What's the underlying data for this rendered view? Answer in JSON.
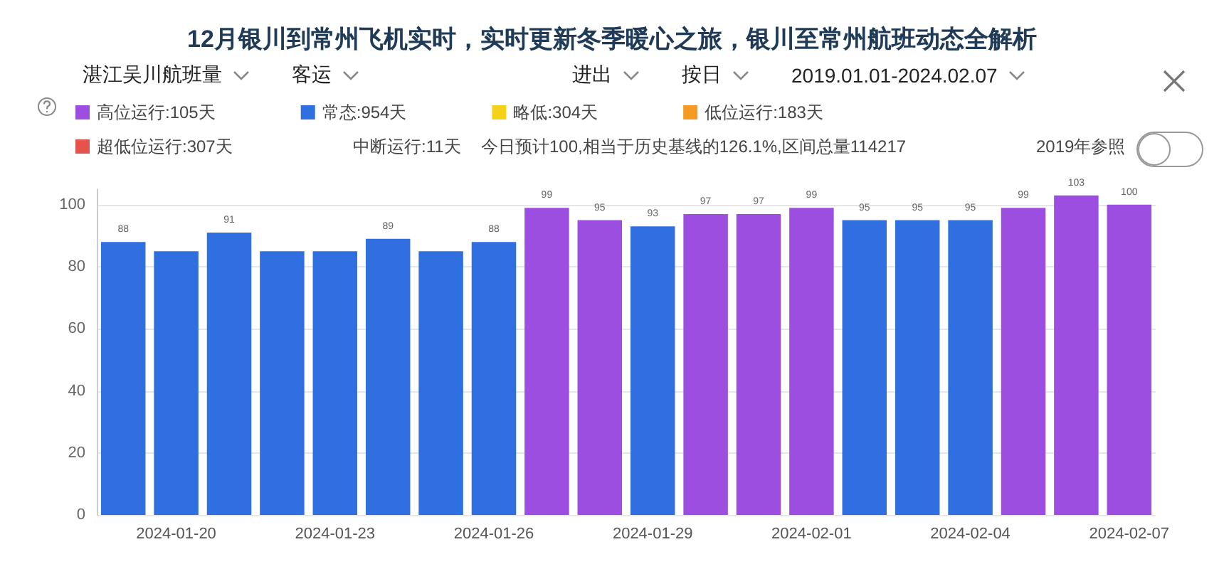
{
  "chart_data": {
    "type": "bar",
    "title": "12月银川到常州飞机实时，实时更新冬季暖心之旅，银川至常州航班动态全解析",
    "categories": [
      null,
      "2024-01-20",
      null,
      null,
      "2024-01-23",
      null,
      null,
      "2024-01-26",
      null,
      null,
      "2024-01-29",
      null,
      null,
      "2024-02-01",
      null,
      null,
      "2024-02-04",
      null,
      null,
      "2024-02-07"
    ],
    "stacked": true,
    "series": [
      {
        "name": "高位运行:105天",
        "color": "#9b4ee0",
        "values": [
          null,
          null,
          null,
          null,
          null,
          null,
          null,
          null,
          99,
          95,
          null,
          97,
          97,
          99,
          null,
          null,
          null,
          99,
          103,
          100
        ],
        "value_labels": [
          null,
          null,
          null,
          null,
          null,
          null,
          null,
          null,
          "99",
          "95",
          null,
          "97",
          "97",
          "99",
          null,
          null,
          null,
          "99",
          "103",
          "100"
        ]
      },
      {
        "name": "常态:954天",
        "color": "#2f6fe0",
        "values": [
          88,
          85,
          91,
          85,
          85,
          89,
          85,
          88,
          null,
          null,
          93,
          null,
          null,
          null,
          95,
          95,
          95,
          null,
          null,
          null
        ],
        "value_labels": [
          "88",
          null,
          "91",
          null,
          null,
          "89",
          null,
          "88",
          null,
          null,
          "93",
          null,
          null,
          null,
          "95",
          "95",
          "95",
          null,
          null,
          null
        ]
      },
      {
        "name": "略低:304天",
        "color": "#f5d21a",
        "values": [
          null,
          null,
          null,
          null,
          null,
          null,
          null,
          null,
          null,
          null,
          null,
          null,
          null,
          null,
          null,
          null,
          null,
          null,
          null,
          null
        ]
      },
      {
        "name": "低位运行:183天",
        "color": "#f59a23",
        "values": [
          null,
          null,
          null,
          null,
          null,
          null,
          null,
          null,
          null,
          null,
          null,
          null,
          null,
          null,
          null,
          null,
          null,
          null,
          null,
          null
        ]
      },
      {
        "name": "超低位运行:307天",
        "color": "#e5534b",
        "values": [
          null,
          null,
          null,
          null,
          null,
          null,
          null,
          null,
          null,
          null,
          null,
          null,
          null,
          null,
          null,
          null,
          null,
          null,
          null,
          null
        ]
      }
    ],
    "ylim": [
      0,
      105
    ],
    "yticks": [
      0,
      20,
      40,
      60,
      80,
      100
    ],
    "grid": "y",
    "legend": "top left",
    "annotations": [
      "湛江吴川航班量",
      "客运",
      "进出",
      "按日",
      "2019.01.01-2024.02.07",
      "中断运行:11天",
      "今日预计100,相当于历史基线的126.1%,区间总量114217",
      "2019年参照"
    ]
  }
}
